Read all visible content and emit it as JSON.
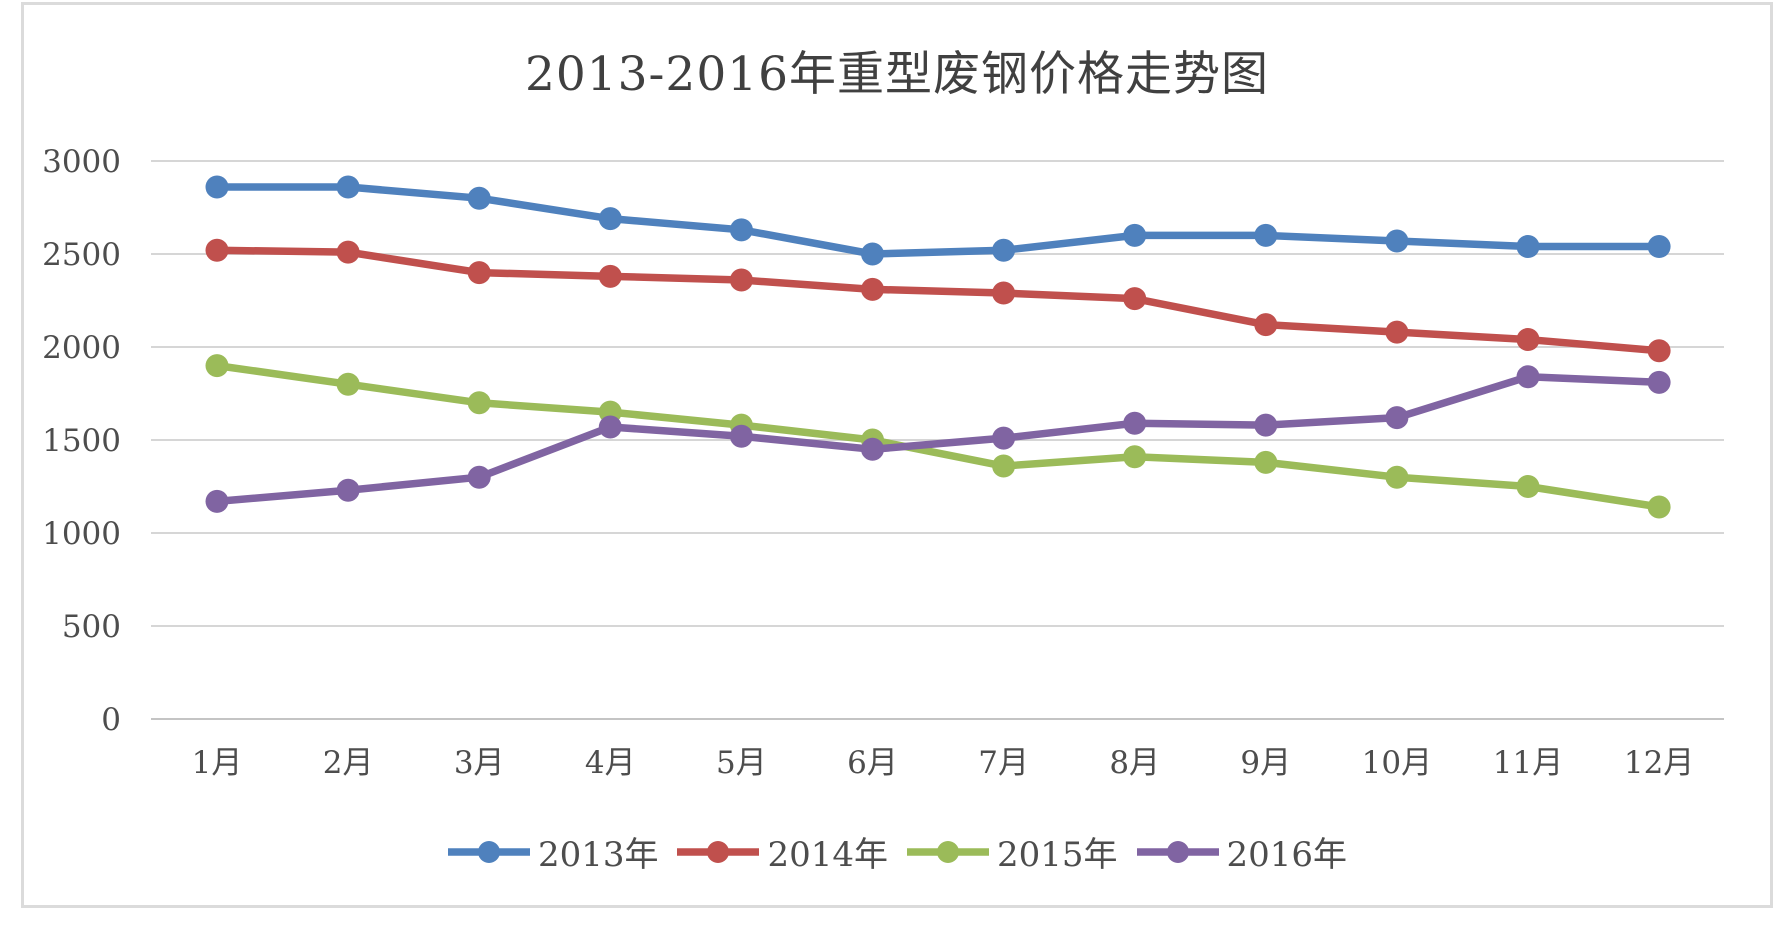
{
  "chart": {
    "title": "2013-2016年重型废钢价格走势图"
  },
  "chart_data": {
    "type": "line",
    "title": "2013-2016年重型废钢价格走势图",
    "xlabel": "",
    "ylabel": "",
    "categories": [
      "1月",
      "2月",
      "3月",
      "4月",
      "5月",
      "6月",
      "7月",
      "8月",
      "9月",
      "10月",
      "11月",
      "12月"
    ],
    "series": [
      {
        "name": "2013年",
        "color": "#4F81BD",
        "values": [
          2860,
          2860,
          2800,
          2690,
          2630,
          2500,
          2520,
          2600,
          2600,
          2570,
          2540,
          2540
        ]
      },
      {
        "name": "2014年",
        "color": "#C0504D",
        "values": [
          2520,
          2510,
          2400,
          2380,
          2360,
          2310,
          2290,
          2260,
          2120,
          2080,
          2040,
          1980
        ]
      },
      {
        "name": "2015年",
        "color": "#9BBB59",
        "values": [
          1900,
          1800,
          1700,
          1650,
          1580,
          1500,
          1360,
          1410,
          1380,
          1300,
          1250,
          1140
        ]
      },
      {
        "name": "2016年",
        "color": "#8064A2",
        "values": [
          1170,
          1230,
          1300,
          1570,
          1520,
          1450,
          1510,
          1590,
          1580,
          1620,
          1840,
          1810
        ]
      }
    ],
    "ylim": [
      0,
      3000
    ],
    "ytick_step": 500,
    "yticks": [
      0,
      500,
      1000,
      1500,
      2000,
      2500,
      3000
    ],
    "grid": "horizontal",
    "legend_position": "bottom",
    "marker": "circle"
  },
  "colors": {
    "grid": "#d6d6d6",
    "axis_line": "#c4c4c4",
    "tick_text": "#4d4d4d",
    "title_text": "#404040",
    "frame_border": "#dbdbdb",
    "background": "#ffffff"
  }
}
